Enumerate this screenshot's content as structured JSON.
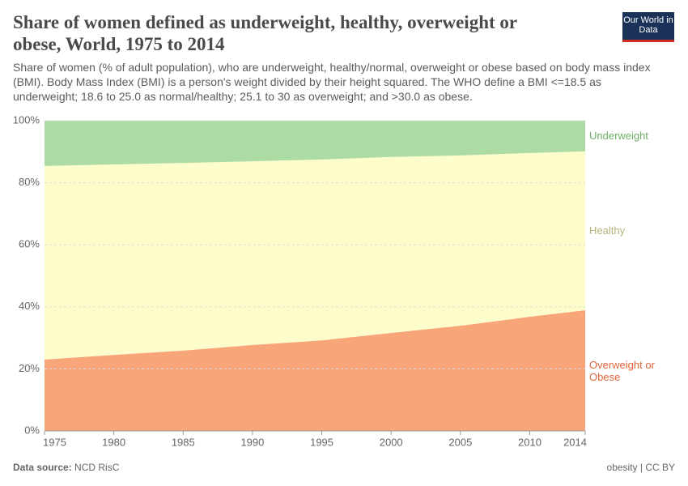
{
  "chart_data": {
    "type": "stacked-area",
    "title": "Share of women defined as underweight, healthy, overweight or obese, World, 1975 to 2014",
    "subtitle": "Share of women (% of adult population), who are underweight, healthy/normal, overweight or obese based on body mass index (BMI). Body Mass Index (BMI) is a person's weight divided by their height squared. The WHO define a BMI <=18.5 as underweight; 18.6 to 25.0 as normal/healthy; 25.1 to 30 as overweight; and >30.0 as obese.",
    "logo": "Our World in Data",
    "source_label": "Data source:",
    "source": "NCD RisC",
    "license": "obesity | CC BY",
    "x": [
      1975,
      1980,
      1985,
      1990,
      1995,
      2000,
      2005,
      2010,
      2014
    ],
    "series": [
      {
        "name": "Overweight or Obese",
        "color": "#f9a57a",
        "label_color": "#e0663b",
        "values": [
          23.0,
          24.5,
          25.9,
          27.7,
          29.2,
          31.6,
          33.9,
          36.8,
          38.9
        ]
      },
      {
        "name": "Healthy",
        "color": "#fdfccb",
        "label_color": "#b4b27a",
        "values": [
          62.4,
          61.4,
          60.5,
          59.2,
          58.3,
          56.7,
          54.9,
          52.8,
          51.2
        ]
      },
      {
        "name": "Underweight",
        "color": "#acdba4",
        "label_color": "#6fae66",
        "values": [
          14.6,
          14.1,
          13.6,
          13.1,
          12.5,
          11.7,
          11.2,
          10.4,
          9.9
        ]
      }
    ],
    "xlim": [
      1975,
      2014
    ],
    "xticks": [
      1975,
      1980,
      1985,
      1990,
      1995,
      2000,
      2005,
      2010,
      2014
    ],
    "ylim": [
      0,
      100
    ],
    "yticks": [
      {
        "value": 0,
        "label": "0%"
      },
      {
        "value": 20,
        "label": "20%"
      },
      {
        "value": 40,
        "label": "40%"
      },
      {
        "value": 60,
        "label": "60%"
      },
      {
        "value": 80,
        "label": "80%"
      },
      {
        "value": 100,
        "label": "100%"
      }
    ],
    "grid": true
  }
}
